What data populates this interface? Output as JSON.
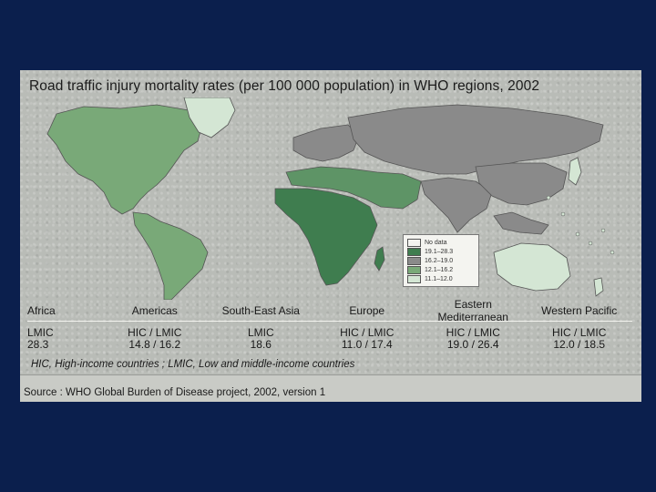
{
  "title": "Road traffic injury mortality rates (per 100 000 population) in WHO regions, 2002",
  "legend": [
    {
      "label": "No data",
      "color": "#f4f4f0"
    },
    {
      "label": "19.1–28.3",
      "color": "#3f7d4f"
    },
    {
      "label": "16.2–19.0",
      "color": "#8a8a8a"
    },
    {
      "label": "12.1–16.2",
      "color": "#79a978"
    },
    {
      "label": "11.1–12.0",
      "color": "#d4e6d4"
    }
  ],
  "regions": [
    {
      "name": "Africa",
      "groups": "LMIC",
      "rates": "28.3",
      "color": "#3f7d4f"
    },
    {
      "name": "Americas",
      "groups": "HIC / LMIC",
      "rates": "14.8 / 16.2",
      "color": "#79a978"
    },
    {
      "name": "South-East Asia",
      "groups": "LMIC",
      "rates": "18.6",
      "color": "#8a8a8a"
    },
    {
      "name": "Europe",
      "groups": "HIC / LMIC",
      "rates": "11.0 / 17.4",
      "color": "#8a8a8a"
    },
    {
      "name": "Eastern Mediterranean",
      "groups": "HIC / LMIC",
      "rates": "19.0 / 26.4",
      "color": "#5e9466"
    },
    {
      "name": "Western Pacific",
      "groups": "HIC / LMIC",
      "rates": "12.0 / 18.5",
      "color": "#d4e6d4"
    }
  ],
  "note": "HIC, High-income countries ; LMIC, Low and middle-income countries",
  "source": "Source : WHO Global Burden of Disease project, 2002, version 1",
  "colors": {
    "background": "#0b1f4d",
    "panel": "#b9bcb7",
    "border": "#555555"
  }
}
